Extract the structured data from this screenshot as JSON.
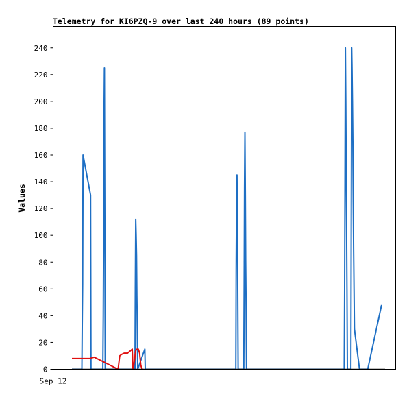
{
  "chart_data": {
    "type": "line",
    "title": "Telemetry for KI6PZQ-9 over last 240 hours (89 points)",
    "xlabel": "",
    "ylabel": "Values",
    "x_tick_labels": [
      "Sep 12"
    ],
    "ylim": [
      0,
      256
    ],
    "yticks": [
      0,
      20,
      40,
      60,
      80,
      100,
      120,
      140,
      160,
      180,
      200,
      220,
      240
    ],
    "grid": false,
    "legend": "none",
    "x_unit": "hours",
    "xlim": [
      0,
      240
    ],
    "series": [
      {
        "color": "#1e6fc4",
        "x": [
          0,
          7.6,
          7.9,
          8.2,
          8.5,
          14.3,
          14.6,
          23.7,
          24.0,
          24.3,
          24.6,
          24.9,
          25.2,
          25.5,
          48.3,
          48.6,
          48.9,
          49.2,
          49.5,
          49.8,
          50.1,
          50.4,
          55.9,
          56.2,
          56.5,
          125.6,
          125.9,
          126.2,
          126.5,
          126.8,
          127.1,
          127.4,
          131.7,
          132.0,
          132.3,
          132.6,
          132.9,
          133.2,
          133.5,
          133.8,
          208.7,
          209.0,
          209.3,
          209.6,
          209.9,
          210.2,
          210.5,
          210.8,
          211.1,
          213.8,
          214.1,
          214.4,
          214.7,
          215.0,
          215.3,
          215.6,
          215.9,
          216.2,
          216.5,
          220.4,
          226.7,
          237.3
        ],
        "y": [
          0,
          0,
          32,
          64,
          160,
          130,
          0,
          0,
          40,
          112,
          187,
          225,
          112,
          0,
          0,
          60,
          112,
          100,
          85,
          55,
          30,
          0,
          15,
          0,
          0,
          0,
          75,
          125,
          145,
          115,
          60,
          0,
          0,
          65,
          135,
          177,
          130,
          80,
          45,
          0,
          0,
          60,
          140,
          240,
          200,
          145,
          110,
          60,
          0,
          0,
          120,
          240,
          225,
          200,
          170,
          130,
          90,
          60,
          30,
          0,
          0,
          48
        ]
      },
      {
        "color": "#e01010",
        "x": [
          0,
          9.5,
          13.6,
          17.0,
          35.4,
          36.6,
          38.0,
          40.0,
          42.6,
          45.1,
          46.2,
          46.8,
          47.0,
          48.9,
          49.9,
          50.9,
          51.9,
          52.8,
          53.8,
          54.7
        ],
        "y": [
          8,
          8,
          8,
          9,
          0,
          10,
          11,
          12,
          12,
          14,
          15,
          0,
          0,
          14,
          15,
          15,
          12,
          3,
          0,
          0
        ]
      },
      {
        "color": "#000000",
        "x": [
          0,
          240
        ],
        "y": [
          0,
          0
        ]
      }
    ]
  }
}
